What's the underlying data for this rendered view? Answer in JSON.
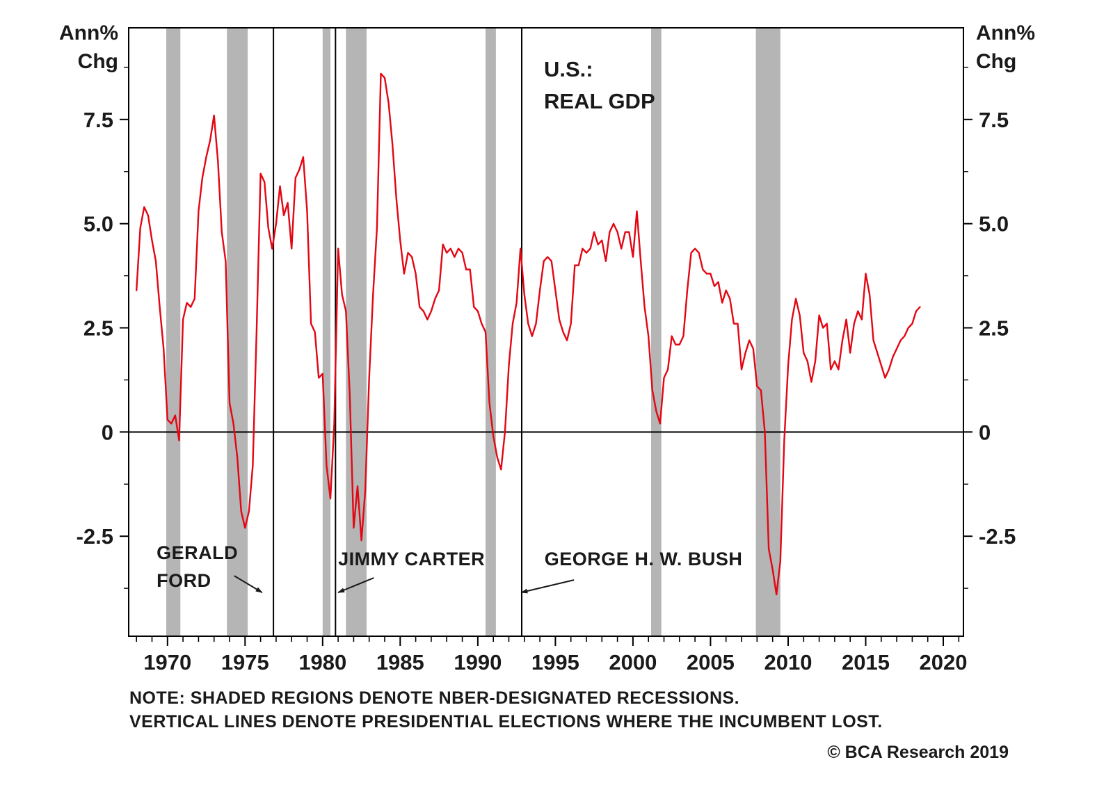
{
  "axes": {
    "left_corner_label": "Ann%\nChg",
    "right_corner_label": "Ann%\nChg"
  },
  "footer": {
    "note_line1": "NOTE: SHADED REGIONS DENOTE NBER-DESIGNATED RECESSIONS.",
    "note_line2": "VERTICAL LINES DENOTE PRESIDENTIAL ELECTIONS WHERE THE INCUMBENT LOST.",
    "credit": "© BCA Research 2019"
  },
  "chart_data": {
    "type": "line",
    "title_lines": [
      "U.S.:",
      "REAL GDP"
    ],
    "xlabel": "",
    "ylabel": "Ann% Chg",
    "xlim": [
      1967.5,
      2021.3
    ],
    "ylim": [
      -4.9,
      9.7
    ],
    "yticks": [
      7.5,
      5.0,
      2.5,
      0,
      -2.5
    ],
    "ytick_labels": [
      "7.5",
      "5.0",
      "2.5",
      "0",
      "-2.5"
    ],
    "y_minor_step": 1.25,
    "xticks": [
      1970,
      1975,
      1980,
      1985,
      1990,
      1995,
      2000,
      2005,
      2010,
      2015,
      2020
    ],
    "x_minor_step": 1,
    "grid": false,
    "legend": "none",
    "line_color": "#e30613",
    "recession_color": "#b5b5b5",
    "axis_color": "#000000",
    "text_color": "#1a1a1a",
    "series": [
      {
        "name": "U.S. Real GDP, annual % change (quarterly)",
        "x_start": 1968.0,
        "x_step": 0.25,
        "values": [
          3.4,
          4.9,
          5.4,
          5.2,
          4.6,
          4.1,
          3.0,
          2.0,
          0.3,
          0.2,
          0.4,
          -0.2,
          2.7,
          3.1,
          3.0,
          3.2,
          5.3,
          6.1,
          6.6,
          7.0,
          7.6,
          6.5,
          4.8,
          4.1,
          0.7,
          0.2,
          -0.6,
          -1.9,
          -2.3,
          -1.9,
          -0.8,
          2.5,
          6.2,
          6.0,
          4.9,
          4.4,
          5.0,
          5.9,
          5.2,
          5.5,
          4.4,
          6.1,
          6.3,
          6.6,
          5.3,
          2.6,
          2.4,
          1.3,
          1.4,
          -0.8,
          -1.6,
          0.2,
          4.4,
          3.3,
          2.9,
          0.9,
          -2.3,
          -1.3,
          -2.6,
          -1.4,
          1.3,
          3.3,
          4.9,
          8.6,
          8.5,
          7.9,
          6.9,
          5.6,
          4.6,
          3.8,
          4.3,
          4.2,
          3.8,
          3.0,
          2.9,
          2.7,
          2.9,
          3.2,
          3.4,
          4.5,
          4.3,
          4.4,
          4.2,
          4.4,
          4.3,
          3.9,
          3.9,
          3.0,
          2.9,
          2.6,
          2.4,
          0.7,
          -0.1,
          -0.6,
          -0.9,
          0.0,
          1.6,
          2.6,
          3.1,
          4.4,
          3.3,
          2.6,
          2.3,
          2.6,
          3.4,
          4.1,
          4.2,
          4.1,
          3.4,
          2.7,
          2.4,
          2.2,
          2.6,
          4.0,
          4.0,
          4.4,
          4.3,
          4.4,
          4.8,
          4.5,
          4.6,
          4.1,
          4.8,
          5.0,
          4.8,
          4.4,
          4.8,
          4.8,
          4.2,
          5.3,
          4.1,
          3.0,
          2.3,
          1.0,
          0.5,
          0.2,
          1.3,
          1.5,
          2.3,
          2.1,
          2.1,
          2.3,
          3.4,
          4.3,
          4.4,
          4.3,
          3.9,
          3.8,
          3.8,
          3.5,
          3.6,
          3.1,
          3.4,
          3.2,
          2.6,
          2.6,
          1.5,
          1.9,
          2.2,
          2.0,
          1.1,
          1.0,
          0.0,
          -2.8,
          -3.3,
          -3.9,
          -3.1,
          -0.2,
          1.6,
          2.7,
          3.2,
          2.8,
          1.9,
          1.7,
          1.2,
          1.7,
          2.8,
          2.5,
          2.6,
          1.5,
          1.7,
          1.5,
          2.2,
          2.7,
          1.9,
          2.6,
          2.9,
          2.7,
          3.8,
          3.3,
          2.2,
          1.9,
          1.6,
          1.3,
          1.5,
          1.8,
          2.0,
          2.2,
          2.3,
          2.5,
          2.6,
          2.9,
          3.0
        ]
      }
    ],
    "recessions": [
      [
        1969.92,
        1970.83
      ],
      [
        1973.83,
        1975.17
      ],
      [
        1980.0,
        1980.5
      ],
      [
        1981.5,
        1982.83
      ],
      [
        1990.5,
        1991.17
      ],
      [
        2001.17,
        2001.83
      ],
      [
        2007.92,
        2009.5
      ]
    ],
    "vlines": [
      1976.83,
      1980.83,
      1992.83
    ],
    "annotations": [
      {
        "lines": [
          "GERALD",
          "FORD"
        ],
        "x": 1969.3,
        "y": -3.05,
        "arrow": {
          "from": [
            1974.3,
            -3.45
          ],
          "to": [
            1976.1,
            -3.85
          ]
        }
      },
      {
        "lines": [
          "JIMMY CARTER"
        ],
        "x": 1981.0,
        "y": -3.2,
        "arrow": {
          "from": [
            1983.3,
            -3.5
          ],
          "to": [
            1981.0,
            -3.85
          ]
        }
      },
      {
        "lines": [
          "GEORGE H. W. BUSH"
        ],
        "x": 1994.3,
        "y": -3.2,
        "arrow": {
          "from": [
            1996.2,
            -3.55
          ],
          "to": [
            1992.8,
            -3.85
          ]
        }
      }
    ]
  }
}
